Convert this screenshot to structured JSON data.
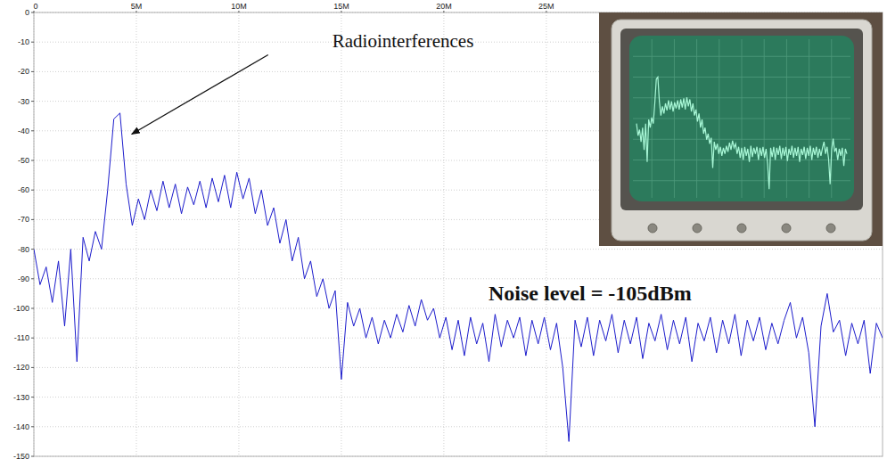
{
  "chart_data": {
    "type": "line",
    "x": [
      0,
      300000,
      600000,
      900000,
      1200000,
      1500000,
      1800000,
      2100000,
      2400000,
      2700000,
      3000000,
      3300000,
      3600000,
      3900000,
      4200000,
      4500000,
      4800000,
      5100000,
      5400000,
      5700000,
      6000000,
      6300000,
      6600000,
      6900000,
      7200000,
      7500000,
      7800000,
      8100000,
      8400000,
      8700000,
      9000000,
      9300000,
      9600000,
      9900000,
      10200000,
      10500000,
      10800000,
      11100000,
      11400000,
      11700000,
      12000000,
      12300000,
      12600000,
      12900000,
      13200000,
      13500000,
      13800000,
      14100000,
      14400000,
      14700000,
      15000000,
      15300000,
      15600000,
      15900000,
      16200000,
      16500000,
      16800000,
      17100000,
      17400000,
      17700000,
      18000000,
      18300000,
      18600000,
      18900000,
      19200000,
      19500000,
      19800000,
      20100000,
      20400000,
      20700000,
      21000000,
      21300000,
      21600000,
      21900000,
      22200000,
      22500000,
      22800000,
      23100000,
      23400000,
      23700000,
      24000000,
      24300000,
      24600000,
      24900000,
      25200000,
      25500000,
      25800000,
      26100000,
      26400000,
      26700000,
      27000000,
      27300000,
      27600000,
      27900000,
      28200000,
      28500000,
      28800000,
      29100000,
      29400000,
      29700000,
      30000000,
      30300000,
      30600000,
      30900000,
      31200000,
      31500000,
      31800000,
      32100000,
      32400000,
      32700000,
      33000000,
      33300000,
      33600000,
      33900000,
      34200000,
      34500000,
      34800000,
      35100000,
      35400000,
      35700000,
      36000000,
      36300000,
      36600000,
      36900000,
      37200000,
      37500000,
      37800000,
      38100000,
      38400000,
      38700000,
      39000000,
      39300000,
      39600000,
      39900000,
      40200000,
      40500000,
      40800000,
      41100000,
      41400000
    ],
    "values": [
      -80,
      -92,
      -86,
      -98,
      -84,
      -106,
      -80,
      -118,
      -76,
      -84,
      -74,
      -80,
      -60,
      -36,
      -34,
      -58,
      -72,
      -63,
      -70,
      -60,
      -67,
      -57,
      -66,
      -58,
      -68,
      -59,
      -65,
      -57,
      -66,
      -56,
      -64,
      -55,
      -66,
      -54,
      -63,
      -56,
      -68,
      -60,
      -72,
      -66,
      -78,
      -70,
      -84,
      -76,
      -90,
      -84,
      -96,
      -90,
      -100,
      -94,
      -124,
      -98,
      -106,
      -100,
      -110,
      -103,
      -112,
      -104,
      -110,
      -102,
      -108,
      -99,
      -106,
      -97,
      -104,
      -100,
      -110,
      -103,
      -114,
      -104,
      -116,
      -103,
      -112,
      -105,
      -118,
      -102,
      -113,
      -104,
      -110,
      -103,
      -116,
      -104,
      -112,
      -103,
      -114,
      -105,
      -120,
      -145,
      -104,
      -113,
      -103,
      -116,
      -104,
      -111,
      -102,
      -115,
      -104,
      -112,
      -103,
      -117,
      -105,
      -111,
      -102,
      -114,
      -104,
      -112,
      -103,
      -118,
      -105,
      -111,
      -103,
      -115,
      -104,
      -112,
      -102,
      -116,
      -104,
      -111,
      -103,
      -114,
      -105,
      -112,
      -104,
      -98,
      -110,
      -103,
      -115,
      -140,
      -106,
      -95,
      -108,
      -104,
      -116,
      -105,
      -112,
      -104,
      -122,
      -105,
      -110
    ],
    "color": "#1c1ccc",
    "xlim": [
      0,
      41400000
    ],
    "ylim": [
      -150,
      0
    ],
    "xticks": [
      0,
      {
        "value": 5000000,
        "label": "5M"
      },
      {
        "value": 10000000,
        "label": "10M"
      },
      {
        "value": 15000000,
        "label": "15M"
      },
      {
        "value": 20000000,
        "label": "20M"
      },
      {
        "value": 25000000,
        "label": "25M"
      }
    ],
    "yticks": [
      0,
      -10,
      -20,
      -30,
      -40,
      -50,
      -60,
      -70,
      -80,
      -90,
      -100,
      -110,
      -120,
      -130,
      -140,
      -150
    ],
    "grid": true,
    "annotations": [
      {
        "text": "Radiointerferences",
        "x": 4600000,
        "y": -42
      },
      {
        "text": "Noise level = -105dBm"
      }
    ]
  }
}
